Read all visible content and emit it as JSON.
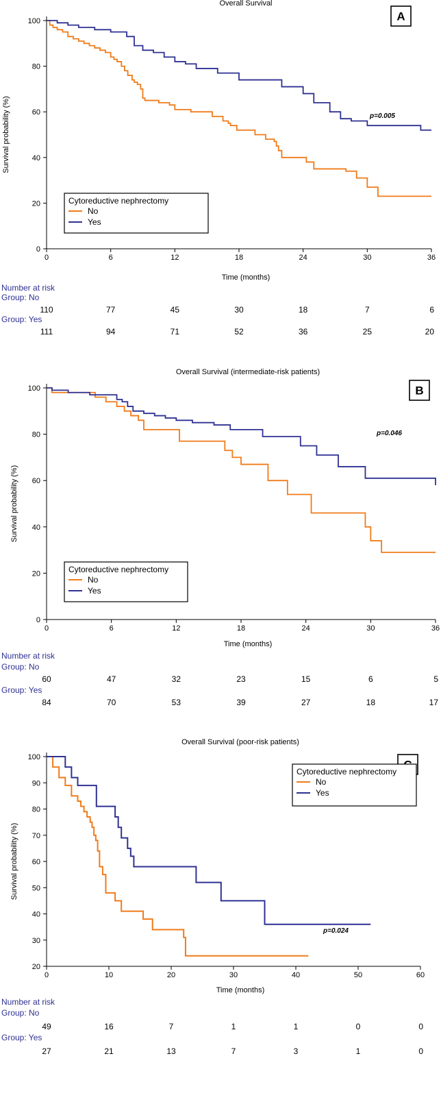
{
  "colors": {
    "no": "#f07b1a",
    "yes": "#2e3192",
    "risk_label": "#2e3192",
    "axis": "#000000"
  },
  "chart_data": [
    {
      "panel": "A",
      "type": "line",
      "step": true,
      "title": "Overall Survival",
      "xlabel": "Time (months)",
      "ylabel": "Survival probability (%)",
      "xlim": [
        0,
        36
      ],
      "ylim": [
        0,
        100
      ],
      "xticks": [
        0,
        6,
        12,
        18,
        24,
        30,
        36
      ],
      "yticks": [
        0,
        20,
        40,
        60,
        80,
        100
      ],
      "legend": {
        "title": "Cytoreductive nephrectomy",
        "position": "bottom-left"
      },
      "pvalue": "p=0.005",
      "series": [
        {
          "name": "No",
          "key": "no",
          "x": [
            0,
            0.3,
            0.6,
            1,
            1.5,
            2,
            2.5,
            3,
            3.5,
            4,
            4.5,
            5,
            5.5,
            6,
            6.3,
            6.6,
            7,
            7.3,
            7.6,
            8,
            8.2,
            8.5,
            8.8,
            9,
            9.2,
            10.5,
            11.5,
            12,
            13.5,
            15.5,
            16.5,
            17,
            17.2,
            17.8,
            19.5,
            20.5,
            21.3,
            21.5,
            21.7,
            22,
            24.3,
            25,
            28,
            29,
            30,
            31,
            36
          ],
          "y": [
            100,
            98,
            97,
            96,
            95,
            93,
            92,
            91,
            90,
            89,
            88,
            87,
            86,
            84,
            83,
            82,
            80,
            78,
            76,
            74,
            73,
            72,
            70,
            66,
            65,
            64,
            63,
            61,
            60,
            58,
            56,
            55,
            54,
            52,
            50,
            48,
            47,
            45,
            43,
            40,
            38,
            35,
            34,
            31,
            27,
            23,
            23
          ]
        },
        {
          "name": "Yes",
          "key": "yes",
          "x": [
            0,
            1,
            2,
            3,
            4.5,
            6,
            7.5,
            8.2,
            9,
            10,
            11,
            12,
            13,
            14,
            16,
            18,
            22,
            24,
            25,
            26.5,
            27.5,
            28.5,
            30,
            35,
            36
          ],
          "y": [
            100,
            99,
            98,
            97,
            96,
            95,
            93,
            89,
            87,
            86,
            84,
            82,
            81,
            79,
            77,
            74,
            71,
            68,
            64,
            60,
            57,
            56,
            54,
            52,
            52
          ]
        }
      ],
      "risk": {
        "header": "Number at risk",
        "groups": [
          {
            "label": "Group: No",
            "key": "no",
            "values": [
              "110",
              "77",
              "45",
              "30",
              "18",
              "7",
              "6"
            ]
          },
          {
            "label": "Group: Yes",
            "key": "yes",
            "values": [
              "111",
              "94",
              "71",
              "52",
              "36",
              "25",
              "20"
            ]
          }
        ]
      }
    },
    {
      "panel": "B",
      "type": "line",
      "step": true,
      "title": "Overall Survival (intermediate-risk patients)",
      "xlabel": "Time (months)",
      "ylabel": "Survival probability (%)",
      "xlim": [
        0,
        36
      ],
      "ylim": [
        0,
        100
      ],
      "xticks": [
        0,
        6,
        12,
        18,
        24,
        30,
        36
      ],
      "yticks": [
        0,
        20,
        40,
        60,
        80,
        100
      ],
      "legend": {
        "title": "Cytoreductive nephrectomy",
        "position": "bottom-left"
      },
      "pvalue": "p=0.046",
      "series": [
        {
          "name": "No",
          "key": "no",
          "x": [
            0,
            0.5,
            4.5,
            5.5,
            6.5,
            7.2,
            7.8,
            8.5,
            9,
            12.3,
            16.5,
            17.2,
            18,
            20.5,
            22.3,
            24.5,
            29.5,
            30,
            31,
            36
          ],
          "y": [
            100,
            98,
            96,
            94,
            92,
            90,
            88,
            86,
            82,
            77,
            73,
            70,
            67,
            60,
            54,
            46,
            40,
            34,
            29,
            29
          ]
        },
        {
          "name": "Yes",
          "key": "yes",
          "x": [
            0,
            0.5,
            2,
            4,
            6.5,
            7,
            7.5,
            8,
            9,
            10,
            11,
            12,
            13.5,
            15.5,
            17,
            20,
            23.5,
            25,
            27,
            29.5,
            36
          ],
          "y": [
            100,
            99,
            98,
            97,
            95,
            94,
            92,
            90,
            89,
            88,
            87,
            86,
            85,
            84,
            82,
            79,
            75,
            71,
            66,
            61,
            58
          ]
        }
      ],
      "risk": {
        "header": "Number at risk",
        "groups": [
          {
            "label": "Group: No",
            "key": "no",
            "values": [
              "60",
              "47",
              "32",
              "23",
              "15",
              "6",
              "5"
            ]
          },
          {
            "label": "Group: Yes",
            "key": "yes",
            "values": [
              "84",
              "70",
              "53",
              "39",
              "27",
              "18",
              "17"
            ]
          }
        ]
      }
    },
    {
      "panel": "C",
      "type": "line",
      "step": true,
      "title": "Overall Survival (poor-risk patients)",
      "xlabel": "Time (months)",
      "ylabel": "Survival probability (%)",
      "xlim": [
        0,
        60
      ],
      "ylim": [
        20,
        100
      ],
      "xticks": [
        0,
        10,
        20,
        30,
        40,
        50,
        60
      ],
      "yticks": [
        20,
        30,
        40,
        50,
        60,
        70,
        80,
        90,
        100
      ],
      "legend": {
        "title": "Cytoreductive nephrectomy",
        "position": "top-right"
      },
      "pvalue": "p=0.024",
      "series": [
        {
          "name": "No",
          "key": "no",
          "x": [
            0,
            1,
            2,
            3,
            4,
            5,
            5.5,
            6,
            6.5,
            7,
            7.3,
            7.6,
            7.9,
            8.2,
            8.5,
            9,
            9.5,
            11,
            12,
            15.5,
            17,
            22,
            22.3,
            42
          ],
          "y": [
            100,
            96,
            92,
            89,
            85,
            83,
            81,
            79,
            77,
            75,
            73,
            70,
            68,
            64,
            58,
            55,
            48,
            45,
            41,
            38,
            34,
            31,
            24,
            24
          ]
        },
        {
          "name": "Yes",
          "key": "yes",
          "x": [
            0,
            3,
            4,
            5,
            8,
            11,
            11.5,
            12,
            13,
            13.5,
            14,
            24,
            28,
            35,
            52
          ],
          "y": [
            100,
            96,
            92,
            89,
            81,
            77,
            73,
            69,
            65,
            62,
            58,
            52,
            45,
            36,
            36
          ]
        }
      ],
      "risk": {
        "header": "Number at risk",
        "groups": [
          {
            "label": "Group: No",
            "key": "no",
            "values": [
              "49",
              "16",
              "7",
              "1",
              "1",
              "0",
              "0"
            ]
          },
          {
            "label": "Group: Yes",
            "key": "yes",
            "values": [
              "27",
              "21",
              "13",
              "7",
              "3",
              "1",
              "0"
            ]
          }
        ]
      }
    }
  ]
}
